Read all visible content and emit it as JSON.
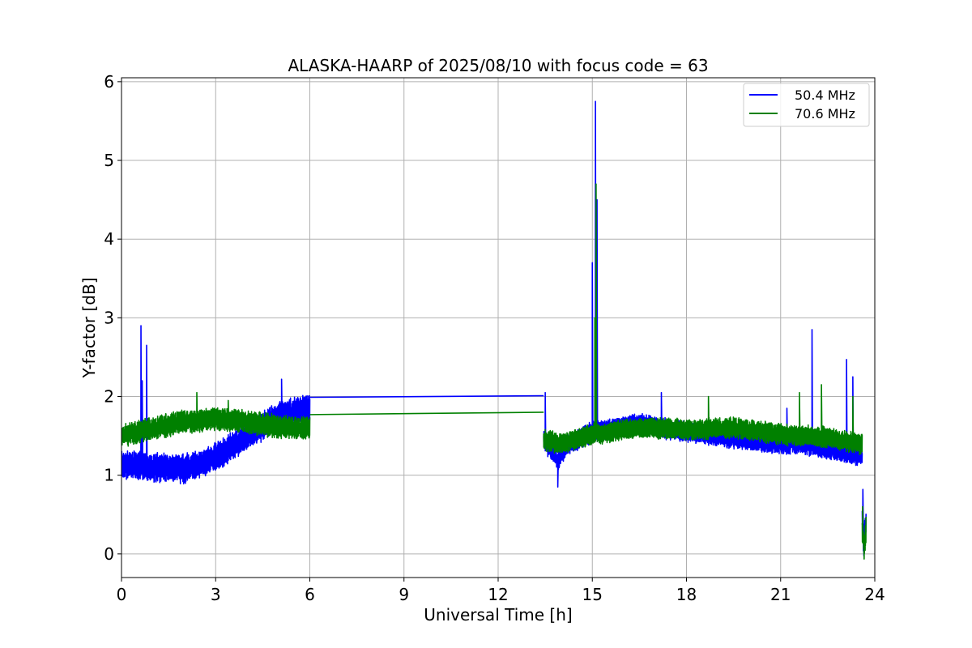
{
  "chart_data": {
    "type": "line",
    "title": "ALASKA-HAARP of 2025/08/10 with focus code = 63",
    "xlabel": "Universal Time [h]",
    "ylabel": "Y-factor [dB]",
    "xlim": [
      0,
      24
    ],
    "ylim": [
      -0.3,
      6.05
    ],
    "xticks": [
      0,
      3,
      6,
      9,
      12,
      15,
      18,
      21,
      24
    ],
    "yticks": [
      0,
      1,
      2,
      3,
      4,
      5,
      6
    ],
    "grid": true,
    "legend_position": "top-right",
    "series": [
      {
        "name": "50.4 MHz",
        "color": "#0000ff",
        "segments": [
          {
            "x_start": 0.0,
            "x_end": 6.0,
            "noise": 0.11,
            "seed": 11,
            "trend": [
              [
                0.0,
                1.15
              ],
              [
                1.0,
                1.1
              ],
              [
                2.0,
                1.08
              ],
              [
                3.0,
                1.22
              ],
              [
                4.0,
                1.5
              ],
              [
                5.0,
                1.75
              ],
              [
                6.0,
                1.85
              ]
            ],
            "spikes": [
              [
                0.62,
                2.9
              ],
              [
                0.66,
                2.2
              ],
              [
                0.8,
                2.65
              ],
              [
                5.1,
                2.22
              ]
            ]
          },
          {
            "x_start": 6.0,
            "x_end": 13.45,
            "noise": 0.0,
            "seed": 0,
            "trend": [
              [
                6.0,
                1.99
              ],
              [
                13.45,
                2.01
              ]
            ],
            "spikes": []
          },
          {
            "x_start": 13.45,
            "x_end": 23.6,
            "noise": 0.08,
            "seed": 23,
            "trend": [
              [
                13.45,
                1.45
              ],
              [
                13.9,
                1.2
              ],
              [
                14.2,
                1.38
              ],
              [
                15.0,
                1.55
              ],
              [
                16.5,
                1.65
              ],
              [
                17.5,
                1.58
              ],
              [
                19.0,
                1.5
              ],
              [
                20.5,
                1.42
              ],
              [
                22.0,
                1.38
              ],
              [
                23.0,
                1.3
              ],
              [
                23.5,
                1.25
              ]
            ],
            "spikes": [
              [
                13.5,
                2.05
              ],
              [
                13.9,
                0.85
              ],
              [
                15.0,
                3.7
              ],
              [
                15.1,
                5.75
              ],
              [
                15.15,
                4.5
              ],
              [
                17.2,
                2.05
              ],
              [
                21.2,
                1.85
              ],
              [
                22.0,
                2.85
              ],
              [
                23.1,
                2.47
              ],
              [
                23.3,
                2.25
              ]
            ]
          },
          {
            "x_start": 23.6,
            "x_end": 23.72,
            "noise": 0.12,
            "seed": 5,
            "trend": [
              [
                23.6,
                0.45
              ],
              [
                23.65,
                0.15
              ],
              [
                23.72,
                0.4
              ]
            ],
            "spikes": [
              [
                23.62,
                0.82
              ]
            ]
          }
        ]
      },
      {
        "name": "70.6 MHz",
        "color": "#008000",
        "segments": [
          {
            "x_start": 0.0,
            "x_end": 6.0,
            "noise": 0.09,
            "seed": 37,
            "trend": [
              [
                0.0,
                1.5
              ],
              [
                1.0,
                1.6
              ],
              [
                2.0,
                1.68
              ],
              [
                3.0,
                1.72
              ],
              [
                4.0,
                1.68
              ],
              [
                5.0,
                1.62
              ],
              [
                6.0,
                1.6
              ]
            ],
            "spikes": [
              [
                2.4,
                2.05
              ],
              [
                3.4,
                1.95
              ]
            ]
          },
          {
            "x_start": 6.0,
            "x_end": 13.45,
            "noise": 0.0,
            "seed": 0,
            "trend": [
              [
                6.0,
                1.77
              ],
              [
                13.45,
                1.8
              ]
            ],
            "spikes": []
          },
          {
            "x_start": 13.45,
            "x_end": 23.6,
            "noise": 0.08,
            "seed": 51,
            "trend": [
              [
                13.45,
                1.45
              ],
              [
                14.0,
                1.4
              ],
              [
                15.0,
                1.52
              ],
              [
                16.5,
                1.6
              ],
              [
                18.0,
                1.58
              ],
              [
                19.5,
                1.6
              ],
              [
                21.0,
                1.52
              ],
              [
                22.5,
                1.48
              ],
              [
                23.5,
                1.4
              ]
            ],
            "spikes": [
              [
                15.12,
                4.7
              ],
              [
                15.08,
                3.0
              ],
              [
                18.7,
                2.0
              ],
              [
                21.6,
                2.05
              ],
              [
                22.3,
                2.15
              ],
              [
                23.3,
                2.0
              ]
            ]
          },
          {
            "x_start": 23.6,
            "x_end": 23.72,
            "noise": 0.1,
            "seed": 9,
            "trend": [
              [
                23.6,
                0.35
              ],
              [
                23.66,
                0.05
              ],
              [
                23.72,
                0.3
              ]
            ],
            "spikes": [
              [
                23.61,
                0.6
              ]
            ]
          }
        ]
      }
    ]
  }
}
